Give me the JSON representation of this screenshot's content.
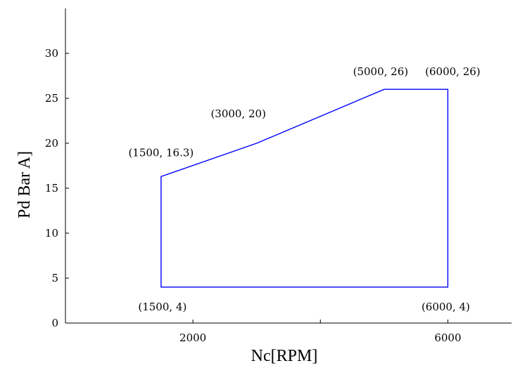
{
  "chart_data": {
    "type": "line",
    "title": "",
    "xlabel": "Nc[RPM]",
    "ylabel": "Pd Bar A]",
    "xlim": [
      0,
      7000
    ],
    "ylim": [
      0,
      35
    ],
    "x_ticks": [
      {
        "value": 2000,
        "label": "2000"
      },
      {
        "value": 6000,
        "label": "6000"
      }
    ],
    "y_ticks": [
      {
        "value": 0,
        "label": "0"
      },
      {
        "value": 5,
        "label": "5"
      },
      {
        "value": 10,
        "label": "10"
      },
      {
        "value": 15,
        "label": "15"
      },
      {
        "value": 20,
        "label": "20"
      },
      {
        "value": 25,
        "label": "25"
      },
      {
        "value": 30,
        "label": "30"
      }
    ],
    "series": [
      {
        "color": "#0000ff",
        "closed": true,
        "points": [
          {
            "x": 1500,
            "y": 4
          },
          {
            "x": 1500,
            "y": 16.3
          },
          {
            "x": 3000,
            "y": 20
          },
          {
            "x": 5000,
            "y": 26
          },
          {
            "x": 6000,
            "y": 26
          },
          {
            "x": 6000,
            "y": 4
          }
        ]
      }
    ],
    "annotations": [
      {
        "text": "(1500, 16.3)",
        "x": 1500,
        "y": 16.3,
        "anchor": "above"
      },
      {
        "text": "(3000, 20)",
        "x": 3000,
        "y": 20,
        "anchor": "above"
      },
      {
        "text": "(5000, 26)",
        "x": 5000,
        "y": 26,
        "anchor": "above"
      },
      {
        "text": "(6000, 26)",
        "x": 6000,
        "y": 26,
        "anchor": "above-right"
      },
      {
        "text": "(1500, 4)",
        "x": 1500,
        "y": 4,
        "anchor": "below"
      },
      {
        "text": "(6000, 4)",
        "x": 6000,
        "y": 4,
        "anchor": "below"
      }
    ],
    "grid": false,
    "legend": "none"
  }
}
